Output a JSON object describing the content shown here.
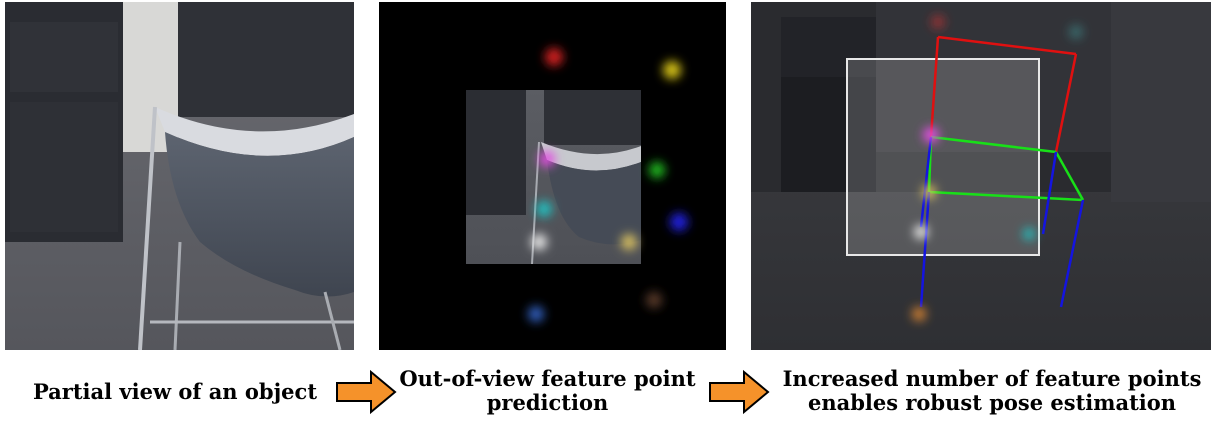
{
  "captions": {
    "step1": "Partial view of an object",
    "step2_line1": "Out-of-view feature point",
    "step2_line2": "prediction",
    "step3_line1": "Increased number of feature points",
    "step3_line2": "enables robust pose estimation"
  },
  "colors": {
    "arrow_fill": "#f5922a",
    "arrow_stroke": "#000000",
    "bbox_red": "#e01010",
    "bbox_green": "#18e018",
    "bbox_blue": "#1414e0",
    "crop_box": "#e8e8e8"
  },
  "icons": {
    "arrow": "right-arrow-icon"
  }
}
